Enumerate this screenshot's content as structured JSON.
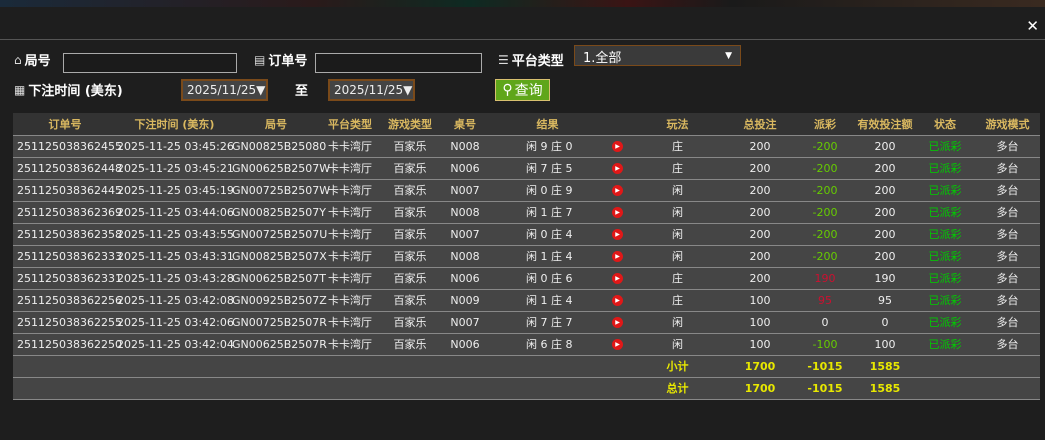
{
  "filters": {
    "round_label": "局号",
    "round_value": "",
    "order_label": "订单号",
    "order_value": "",
    "platform_label": "平台类型",
    "platform_value": "1.全部",
    "time_label": "下注时间 (美东)",
    "date_from": "2025/11/25▼",
    "to_label": "至",
    "date_to": "2025/11/25▼",
    "query_label": "查询"
  },
  "colors": {
    "accent": "#d9b860",
    "query_button": "#5fa61a",
    "negative_payout": "#66cc00",
    "positive_payout": "#cc1030",
    "status": "#00cc00",
    "total": "#e8e800"
  },
  "table": {
    "headers": [
      "订单号",
      "下注时间 (美东)",
      "局号",
      "平台类型",
      "游戏类型",
      "桌号",
      "结果",
      "",
      "玩法",
      "总投注",
      "派彩",
      "有效投注额",
      "状态",
      "游戏模式"
    ],
    "rows": [
      {
        "order": "251125038362455",
        "time": "2025-11-25 03:45:26",
        "round": "GN00825B25080",
        "platform": "卡卡湾厅",
        "game": "百家乐",
        "table": "N008",
        "result": "闲 9 庄 0",
        "play": "庄",
        "bet": "200",
        "payout": "-200",
        "payout_sign": "neg",
        "valid": "200",
        "status": "已派彩",
        "mode": "多台"
      },
      {
        "order": "251125038362448",
        "time": "2025-11-25 03:45:21",
        "round": "GN00625B2507W",
        "platform": "卡卡湾厅",
        "game": "百家乐",
        "table": "N006",
        "result": "闲 7 庄 5",
        "play": "庄",
        "bet": "200",
        "payout": "-200",
        "payout_sign": "neg",
        "valid": "200",
        "status": "已派彩",
        "mode": "多台"
      },
      {
        "order": "251125038362445",
        "time": "2025-11-25 03:45:19",
        "round": "GN00725B2507W",
        "platform": "卡卡湾厅",
        "game": "百家乐",
        "table": "N007",
        "result": "闲 0 庄 9",
        "play": "闲",
        "bet": "200",
        "payout": "-200",
        "payout_sign": "neg",
        "valid": "200",
        "status": "已派彩",
        "mode": "多台"
      },
      {
        "order": "251125038362369",
        "time": "2025-11-25 03:44:06",
        "round": "GN00825B2507Y",
        "platform": "卡卡湾厅",
        "game": "百家乐",
        "table": "N008",
        "result": "闲 1 庄 7",
        "play": "闲",
        "bet": "200",
        "payout": "-200",
        "payout_sign": "neg",
        "valid": "200",
        "status": "已派彩",
        "mode": "多台"
      },
      {
        "order": "251125038362358",
        "time": "2025-11-25 03:43:55",
        "round": "GN00725B2507U",
        "platform": "卡卡湾厅",
        "game": "百家乐",
        "table": "N007",
        "result": "闲 0 庄 4",
        "play": "闲",
        "bet": "200",
        "payout": "-200",
        "payout_sign": "neg",
        "valid": "200",
        "status": "已派彩",
        "mode": "多台"
      },
      {
        "order": "251125038362333",
        "time": "2025-11-25 03:43:31",
        "round": "GN00825B2507X",
        "platform": "卡卡湾厅",
        "game": "百家乐",
        "table": "N008",
        "result": "闲 1 庄 4",
        "play": "闲",
        "bet": "200",
        "payout": "-200",
        "payout_sign": "neg",
        "valid": "200",
        "status": "已派彩",
        "mode": "多台"
      },
      {
        "order": "251125038362331",
        "time": "2025-11-25 03:43:28",
        "round": "GN00625B2507T",
        "platform": "卡卡湾厅",
        "game": "百家乐",
        "table": "N006",
        "result": "闲 0 庄 6",
        "play": "庄",
        "bet": "200",
        "payout": "190",
        "payout_sign": "pos",
        "valid": "190",
        "status": "已派彩",
        "mode": "多台"
      },
      {
        "order": "251125038362256",
        "time": "2025-11-25 03:42:08",
        "round": "GN00925B2507Z",
        "platform": "卡卡湾厅",
        "game": "百家乐",
        "table": "N009",
        "result": "闲 1 庄 4",
        "play": "庄",
        "bet": "100",
        "payout": "95",
        "payout_sign": "pos",
        "valid": "95",
        "status": "已派彩",
        "mode": "多台"
      },
      {
        "order": "251125038362255",
        "time": "2025-11-25 03:42:06",
        "round": "GN00725B2507R",
        "platform": "卡卡湾厅",
        "game": "百家乐",
        "table": "N007",
        "result": "闲 7 庄 7",
        "play": "闲",
        "bet": "100",
        "payout": "0",
        "payout_sign": "zero",
        "valid": "0",
        "status": "已派彩",
        "mode": "多台"
      },
      {
        "order": "251125038362250",
        "time": "2025-11-25 03:42:04",
        "round": "GN00625B2507R",
        "platform": "卡卡湾厅",
        "game": "百家乐",
        "table": "N006",
        "result": "闲 6 庄 8",
        "play": "闲",
        "bet": "100",
        "payout": "-100",
        "payout_sign": "neg",
        "valid": "100",
        "status": "已派彩",
        "mode": "多台"
      }
    ],
    "subtotal": {
      "label": "小计",
      "bet": "1700",
      "payout": "-1015",
      "valid": "1585"
    },
    "total": {
      "label": "总计",
      "bet": "1700",
      "payout": "-1015",
      "valid": "1585"
    }
  }
}
